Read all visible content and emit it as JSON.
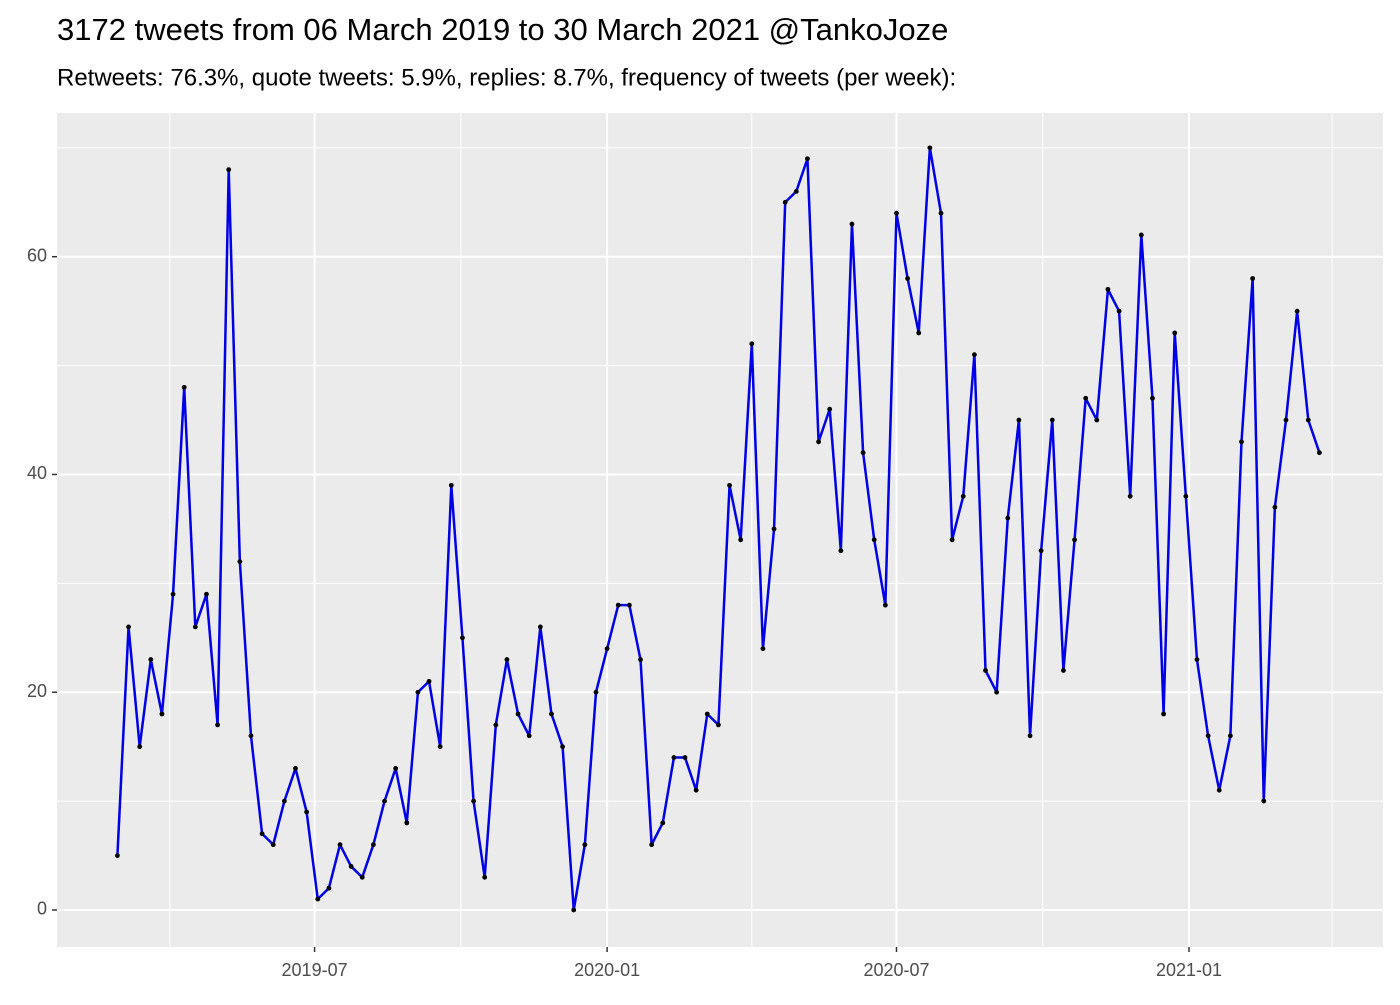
{
  "chart_data": {
    "type": "line",
    "title": "3172 tweets from 06 March 2019 to 30 March 2021 @TankoJoze",
    "subtitle": "Retweets: 76.3%, quote tweets: 5.9%, replies: 8.7%, frequency of tweets (per week):",
    "x": [
      "2019-02-27",
      "2019-03-06",
      "2019-03-13",
      "2019-03-20",
      "2019-03-27",
      "2019-04-03",
      "2019-04-10",
      "2019-04-17",
      "2019-04-24",
      "2019-05-01",
      "2019-05-08",
      "2019-05-15",
      "2019-05-22",
      "2019-05-29",
      "2019-06-05",
      "2019-06-12",
      "2019-06-19",
      "2019-06-26",
      "2019-07-03",
      "2019-07-10",
      "2019-07-17",
      "2019-07-24",
      "2019-07-31",
      "2019-08-07",
      "2019-08-14",
      "2019-08-21",
      "2019-08-28",
      "2019-09-04",
      "2019-09-11",
      "2019-09-18",
      "2019-09-25",
      "2019-10-02",
      "2019-10-09",
      "2019-10-16",
      "2019-10-23",
      "2019-10-30",
      "2019-11-06",
      "2019-11-13",
      "2019-11-20",
      "2019-11-27",
      "2019-12-04",
      "2019-12-11",
      "2019-12-18",
      "2019-12-25",
      "2020-01-01",
      "2020-01-08",
      "2020-01-15",
      "2020-01-22",
      "2020-01-29",
      "2020-02-05",
      "2020-02-12",
      "2020-02-19",
      "2020-02-26",
      "2020-03-04",
      "2020-03-11",
      "2020-03-18",
      "2020-03-25",
      "2020-04-01",
      "2020-04-08",
      "2020-04-15",
      "2020-04-22",
      "2020-04-29",
      "2020-05-06",
      "2020-05-13",
      "2020-05-20",
      "2020-05-27",
      "2020-06-03",
      "2020-06-10",
      "2020-06-17",
      "2020-06-24",
      "2020-07-01",
      "2020-07-08",
      "2020-07-15",
      "2020-07-22",
      "2020-07-29",
      "2020-08-05",
      "2020-08-12",
      "2020-08-19",
      "2020-08-26",
      "2020-09-02",
      "2020-09-09",
      "2020-09-16",
      "2020-09-23",
      "2020-09-30",
      "2020-10-07",
      "2020-10-14",
      "2020-10-21",
      "2020-10-28",
      "2020-11-04",
      "2020-11-11",
      "2020-11-18",
      "2020-11-25",
      "2020-12-02",
      "2020-12-09",
      "2020-12-16",
      "2020-12-23",
      "2020-12-30",
      "2021-01-06",
      "2021-01-13",
      "2021-01-20",
      "2021-01-27",
      "2021-02-03",
      "2021-02-10",
      "2021-02-17",
      "2021-02-24",
      "2021-03-03",
      "2021-03-10",
      "2021-03-17",
      "2021-03-24"
    ],
    "series": [
      {
        "name": "tweets per week",
        "color": "#0000e6",
        "point_color": "#000000",
        "values": [
          5,
          26,
          15,
          23,
          18,
          29,
          48,
          26,
          29,
          17,
          68,
          32,
          16,
          7,
          6,
          10,
          13,
          9,
          1,
          2,
          6,
          4,
          3,
          6,
          10,
          13,
          8,
          20,
          21,
          15,
          39,
          25,
          10,
          3,
          17,
          23,
          18,
          16,
          26,
          18,
          15,
          0,
          6,
          20,
          24,
          28,
          28,
          23,
          6,
          8,
          14,
          14,
          11,
          18,
          17,
          39,
          34,
          52,
          24,
          35,
          65,
          66,
          69,
          43,
          46,
          33,
          63,
          42,
          34,
          28,
          64,
          58,
          53,
          70,
          64,
          34,
          38,
          51,
          22,
          20,
          36,
          45,
          16,
          33,
          45,
          22,
          34,
          47,
          45,
          57,
          55,
          38,
          62,
          47,
          18,
          53,
          38,
          23,
          16,
          11,
          16,
          43,
          58,
          10,
          37,
          45,
          55,
          45,
          42
        ]
      }
    ],
    "xlim": [
      "2019-01-20",
      "2021-05-03"
    ],
    "xticks": [
      {
        "value": "2019-07-01",
        "label": "2019-07"
      },
      {
        "value": "2020-01-01",
        "label": "2020-01"
      },
      {
        "value": "2020-07-01",
        "label": "2020-07"
      },
      {
        "value": "2021-01-01",
        "label": "2021-01"
      }
    ],
    "x_minor_grid": [
      "2019-04-01",
      "2019-10-01",
      "2020-04-01",
      "2020-10-01",
      "2021-04-01"
    ],
    "ylim": [
      -3.4,
      73.2
    ],
    "yticks": [
      0,
      20,
      40,
      60
    ],
    "y_minor_grid": [
      10,
      30,
      50,
      70
    ],
    "grid": true
  }
}
